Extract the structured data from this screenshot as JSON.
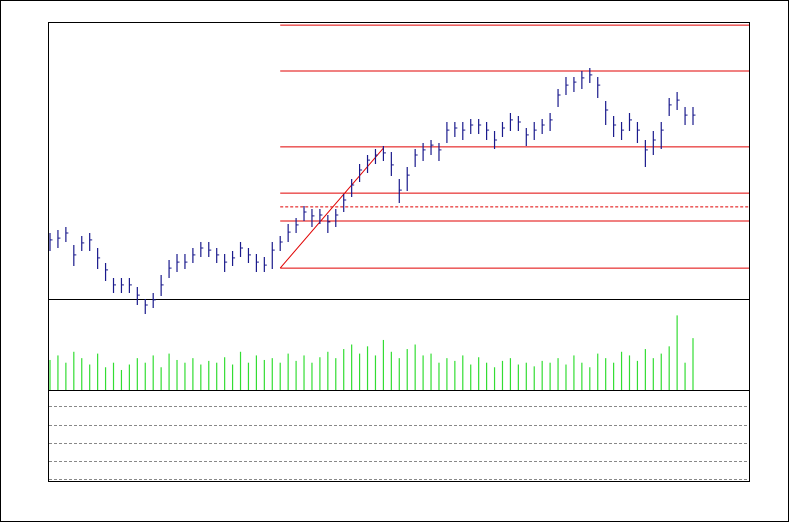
{
  "chart_data": {
    "type": "ohlc",
    "color": "#1a1a8c",
    "volume_color": "#33dd33",
    "fib_color": "#e00000",
    "ylim": [
      0,
      100
    ],
    "volume_ylim": [
      0,
      100
    ],
    "close": [
      26.7,
      27.3,
      29,
      21.7,
      25.7,
      26.7,
      20.7,
      16.7,
      11.7,
      11.7,
      11.7,
      8.3,
      5,
      6.7,
      11.7,
      17.3,
      19.3,
      19.3,
      21.7,
      24,
      23.3,
      21.7,
      19.3,
      20.7,
      24,
      21.7,
      19.3,
      18.3,
      23.3,
      26,
      29.3,
      31.7,
      36,
      34.7,
      35,
      32.7,
      35,
      40,
      45,
      50,
      53.3,
      55,
      55.7,
      51.7,
      43.3,
      48.3,
      55,
      56.7,
      58.3,
      56.7,
      63.3,
      64,
      63.3,
      65,
      65,
      63.3,
      60,
      64,
      66.7,
      66,
      61.7,
      63.3,
      65,
      66.7,
      75,
      78.3,
      79.3,
      80.7,
      81.7,
      78.3,
      70,
      65,
      63.3,
      66.7,
      63.3,
      56.7,
      60,
      63.3,
      71.7,
      73.3,
      68.3,
      68.3
    ],
    "high": [
      29,
      30,
      31,
      25,
      28,
      29,
      24,
      19,
      14,
      14,
      14,
      11,
      7,
      9,
      15,
      20,
      22,
      22,
      24,
      26,
      26,
      24,
      22,
      23,
      26,
      24,
      22,
      21,
      26,
      28,
      32,
      34,
      38,
      37,
      37,
      35,
      37,
      42,
      47,
      52,
      55,
      57,
      58,
      56,
      47,
      51,
      57,
      59,
      60,
      59,
      66,
      66,
      66,
      67,
      67,
      66,
      63,
      66,
      69,
      68,
      64,
      66,
      67,
      69,
      77,
      81,
      81,
      83,
      84,
      81,
      73,
      68,
      66,
      69,
      66,
      60,
      63,
      66,
      74,
      76,
      71,
      71
    ],
    "low": [
      23,
      24,
      26,
      18,
      23,
      23,
      17,
      13,
      9,
      9,
      9,
      5,
      2,
      4,
      8,
      14,
      16,
      17,
      19,
      21,
      21,
      19,
      16,
      18,
      21,
      19,
      16,
      16,
      17,
      23,
      26,
      29,
      33,
      31,
      32,
      29,
      31,
      36,
      41,
      46,
      49,
      52,
      53,
      48,
      39,
      43,
      51,
      53,
      55,
      53,
      59,
      61,
      60,
      62,
      62,
      60,
      57,
      61,
      63,
      63,
      58,
      60,
      62,
      63,
      71,
      75,
      76,
      77,
      79,
      74,
      65,
      61,
      60,
      63,
      59,
      51,
      55,
      57,
      68,
      70,
      65,
      65
    ],
    "volume": [
      33,
      38,
      30,
      42,
      35,
      28,
      40,
      25,
      30,
      22,
      28,
      35,
      30,
      38,
      25,
      40,
      33,
      30,
      35,
      28,
      32,
      30,
      36,
      28,
      42,
      30,
      38,
      33,
      35,
      30,
      40,
      32,
      38,
      30,
      36,
      42,
      35,
      45,
      50,
      40,
      48,
      38,
      55,
      42,
      35,
      45,
      50,
      38,
      40,
      30,
      35,
      32,
      38,
      28,
      36,
      30,
      25,
      32,
      35,
      28,
      30,
      26,
      32,
      30,
      35,
      28,
      38,
      30,
      25,
      40,
      35,
      30,
      42,
      38,
      32,
      45,
      35,
      40,
      48,
      82,
      30,
      57
    ],
    "trend_line": {
      "from": [
        29,
        17.3
      ],
      "to": [
        42,
        57.3
      ]
    },
    "fib_start": 29,
    "fib_levels": [
      {
        "value": 98.3,
        "style": "solid"
      },
      {
        "value": 83,
        "style": "solid"
      },
      {
        "value": 57.7,
        "style": "solid"
      },
      {
        "value": 42.3,
        "style": "solid"
      },
      {
        "value": 37.7,
        "style": "dashed"
      },
      {
        "value": 33,
        "style": "solid"
      },
      {
        "value": 17.3,
        "style": "solid"
      }
    ]
  }
}
